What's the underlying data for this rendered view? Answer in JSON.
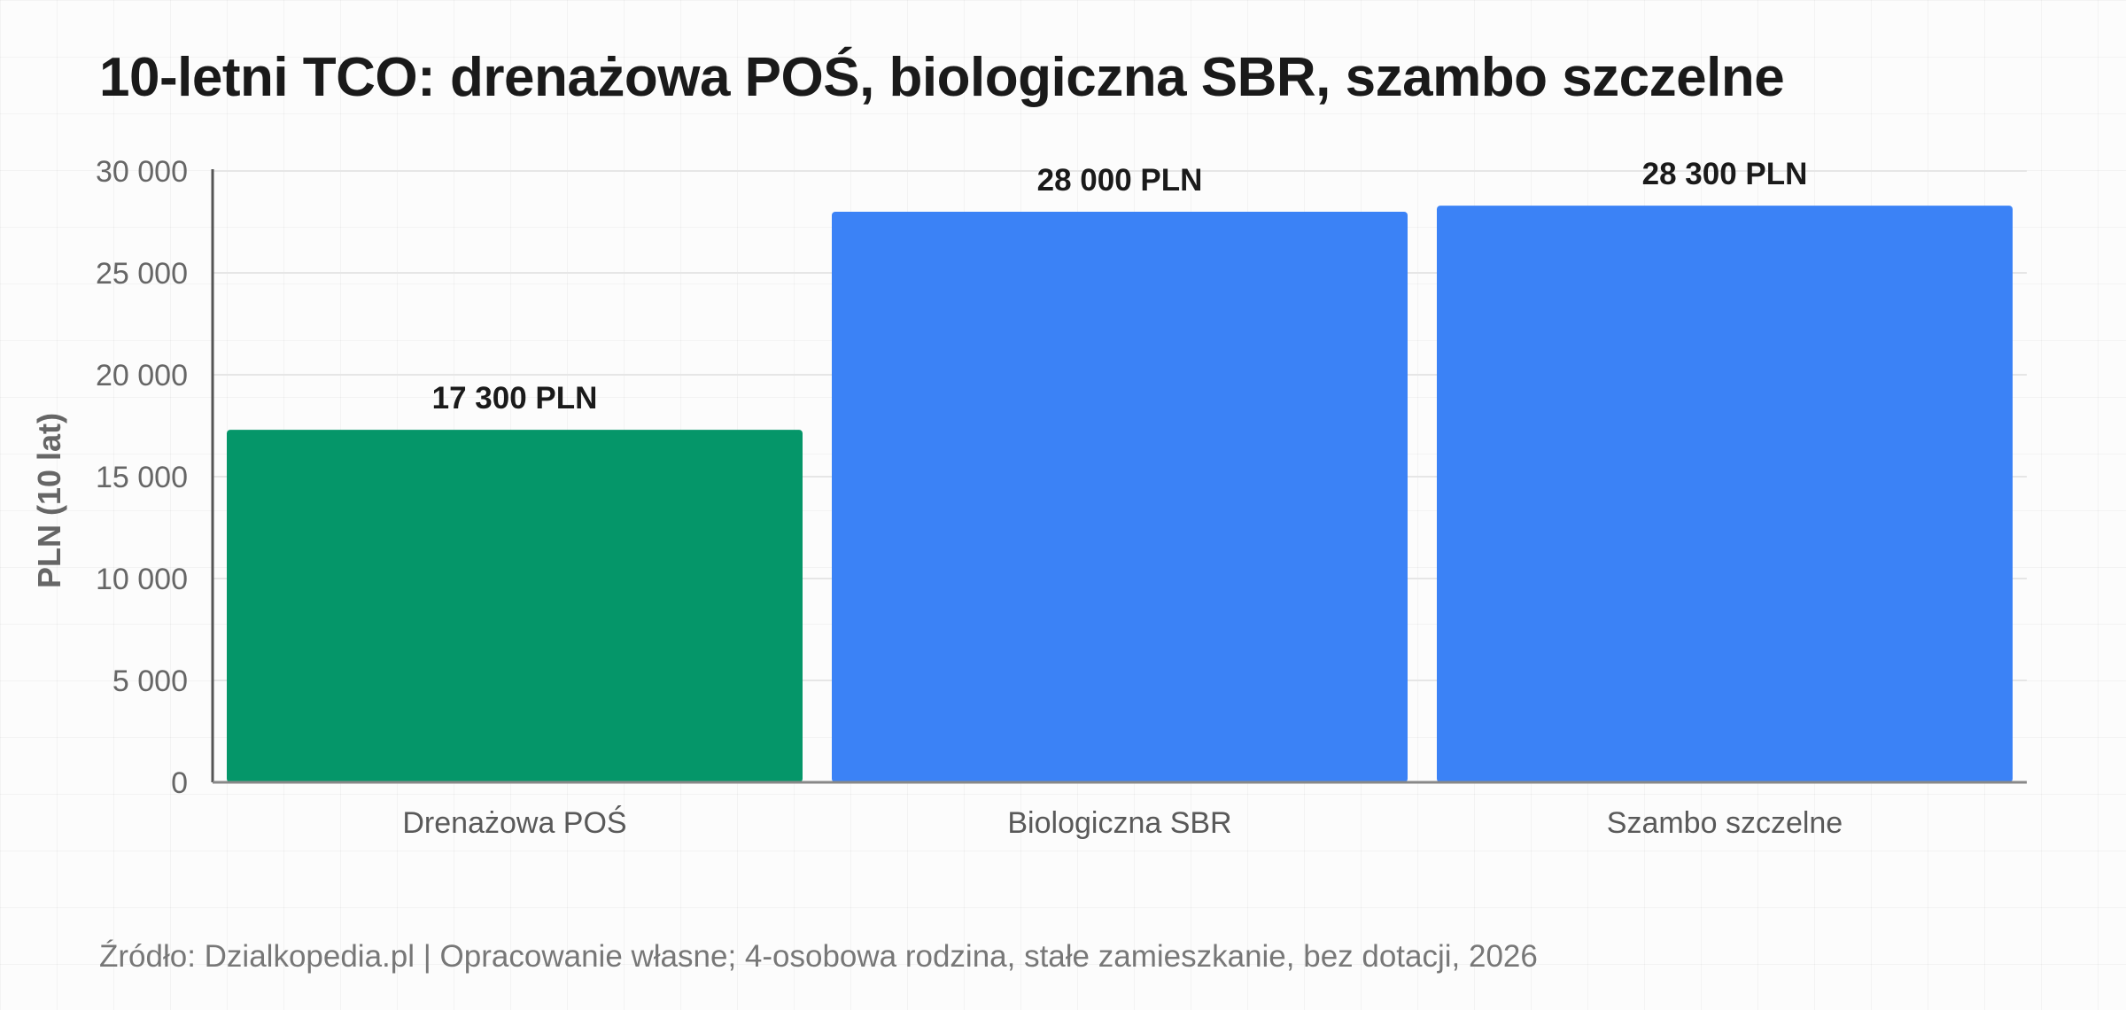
{
  "title": "10-letni TCO: drenażowa POŚ, biologiczna SBR, szambo szczelne",
  "source": "Źródło: Dzialkopedia.pl | Opracowanie własne; 4-osobowa rodzina, stałe zamieszkanie, bez dotacji, 2026",
  "chart_data": {
    "type": "bar",
    "title": "10-letni TCO: drenażowa POŚ, biologiczna SBR, szambo szczelne",
    "xlabel": "",
    "ylabel": "PLN (10 lat)",
    "ylim": [
      0,
      30000
    ],
    "yticks": [
      0,
      5000,
      10000,
      15000,
      20000,
      25000,
      30000
    ],
    "ytick_labels": [
      "0",
      "5 000",
      "10 000",
      "15 000",
      "20 000",
      "25 000",
      "30 000"
    ],
    "categories": [
      "Drenażowa POŚ",
      "Biologiczna SBR",
      "Szambo szczelne"
    ],
    "values": [
      17300,
      28000,
      28300
    ],
    "data_labels": [
      "17 300 PLN",
      "28 000 PLN",
      "28 300 PLN"
    ],
    "colors": [
      "#059669",
      "#3b82f6",
      "#3b82f6"
    ],
    "grid": true,
    "legend": "none"
  }
}
